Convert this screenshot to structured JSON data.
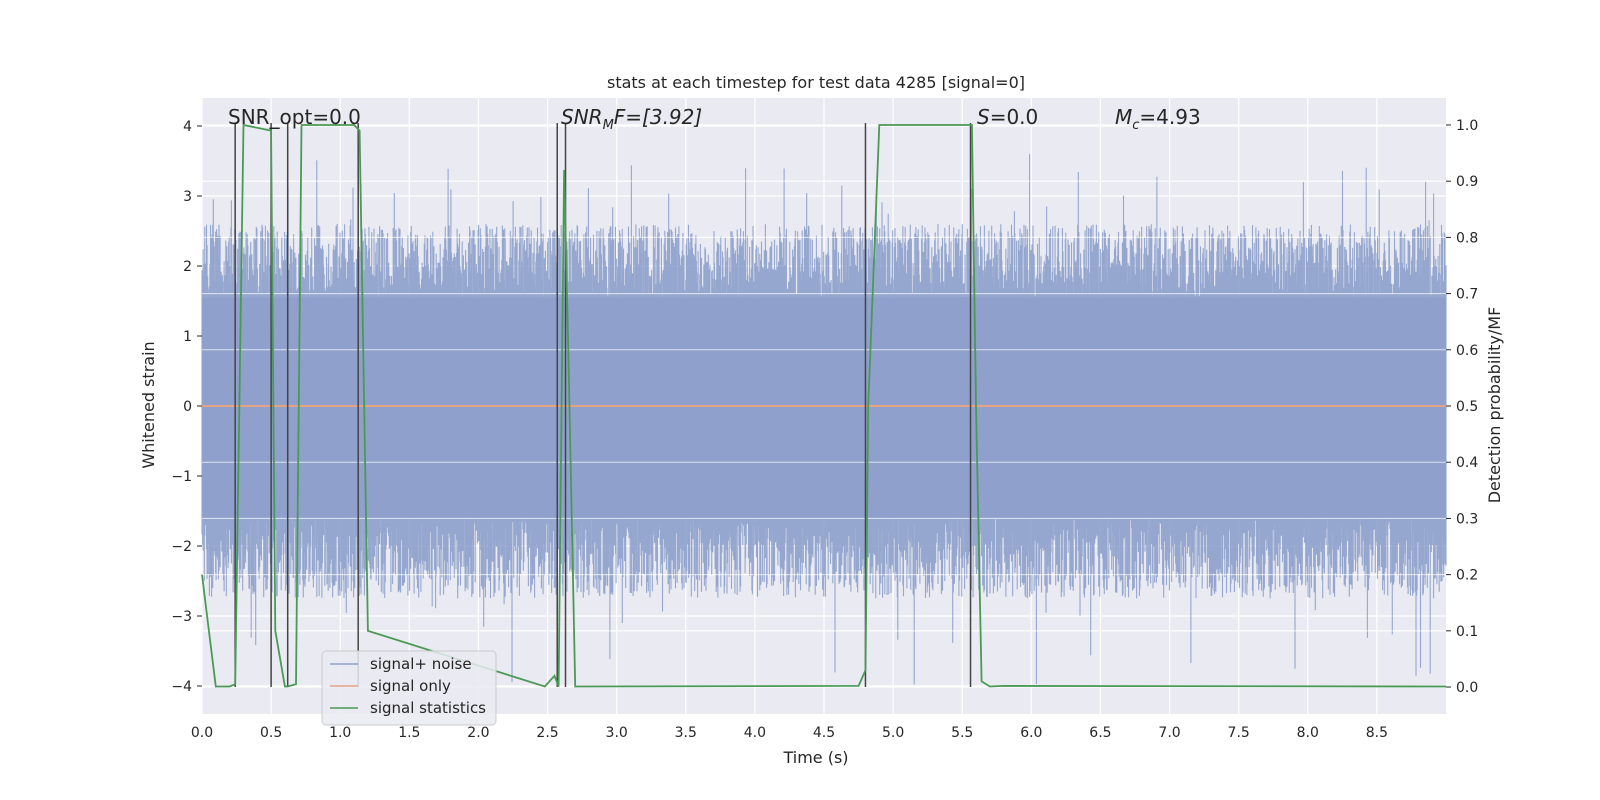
{
  "chart_data": {
    "type": "line",
    "title": "stats at each timestep for test data 4285 [signal=0]",
    "xlabel": "Time (s)",
    "ylabel_left": "Whitened strain",
    "ylabel_right": "Detection probability/MF",
    "xlim": [
      0,
      9.0
    ],
    "ylim_left": [
      -4.4,
      4.4
    ],
    "ylim_right": [
      -0.048,
      1.048
    ],
    "x_ticks": [
      "0.0",
      "0.5",
      "1.0",
      "1.5",
      "2.0",
      "2.5",
      "3.0",
      "3.5",
      "4.0",
      "4.5",
      "5.0",
      "5.5",
      "6.0",
      "6.5",
      "7.0",
      "7.5",
      "8.0",
      "8.5"
    ],
    "y_ticks_left": [
      "4",
      "3",
      "2",
      "1",
      "0",
      "−1",
      "−2",
      "−3",
      "−4"
    ],
    "y_ticks_right": [
      "1.0",
      "0.9",
      "0.8",
      "0.7",
      "0.6",
      "0.5",
      "0.4",
      "0.3",
      "0.2",
      "0.1",
      "0.0"
    ],
    "grid": true,
    "legend_position": "lower-left",
    "series": [
      {
        "name": "signal+ noise",
        "color": "#8da0cb",
        "style": "dense noise trace",
        "envelope": {
          "core": [
            -1.6,
            1.55
          ],
          "typical_peak": 2.6,
          "max_peak": 3.6,
          "min_trough": -4.0
        }
      },
      {
        "name": "signal only",
        "color": "#e5a484",
        "x": [
          0,
          9.0
        ],
        "values": [
          0,
          0
        ]
      },
      {
        "name": "signal statistics",
        "color": "#4a9a55",
        "x": [
          0.0,
          0.05,
          0.1,
          0.2,
          0.24,
          0.3,
          0.5,
          0.5,
          0.53,
          0.6,
          0.62,
          0.68,
          0.72,
          1.1,
          1.14,
          1.2,
          2.48,
          2.55,
          2.58,
          2.62,
          2.65,
          2.7,
          4.75,
          4.8,
          4.82,
          4.9,
          5.57,
          5.6,
          5.64,
          5.7,
          5.8,
          9.0
        ],
        "values": [
          0.2,
          0.1,
          0.001,
          0.001,
          0.005,
          1.0,
          0.99,
          0.98,
          0.1,
          0.001,
          0.001,
          0.005,
          1.0,
          1.0,
          0.99,
          0.1,
          0.001,
          0.02,
          0.001,
          0.92,
          0.6,
          0.001,
          0.002,
          0.03,
          0.5,
          1.0,
          1.0,
          0.5,
          0.01,
          0.001,
          0.002,
          0.001
        ]
      }
    ],
    "vertical_markers": [
      0.24,
      0.5,
      0.62,
      1.13,
      2.57,
      2.63,
      4.8,
      5.56
    ],
    "annotations": {
      "snr_opt": "SNR_opt=0.0",
      "snr_mf_label": "SNR",
      "snr_mf_sub": "M",
      "snr_mf_rest": "F=[3.92]",
      "s_label": "S",
      "s_value": "=0.0",
      "mc_label": "M",
      "mc_sub": "c",
      "mc_value": "=4.93"
    }
  }
}
